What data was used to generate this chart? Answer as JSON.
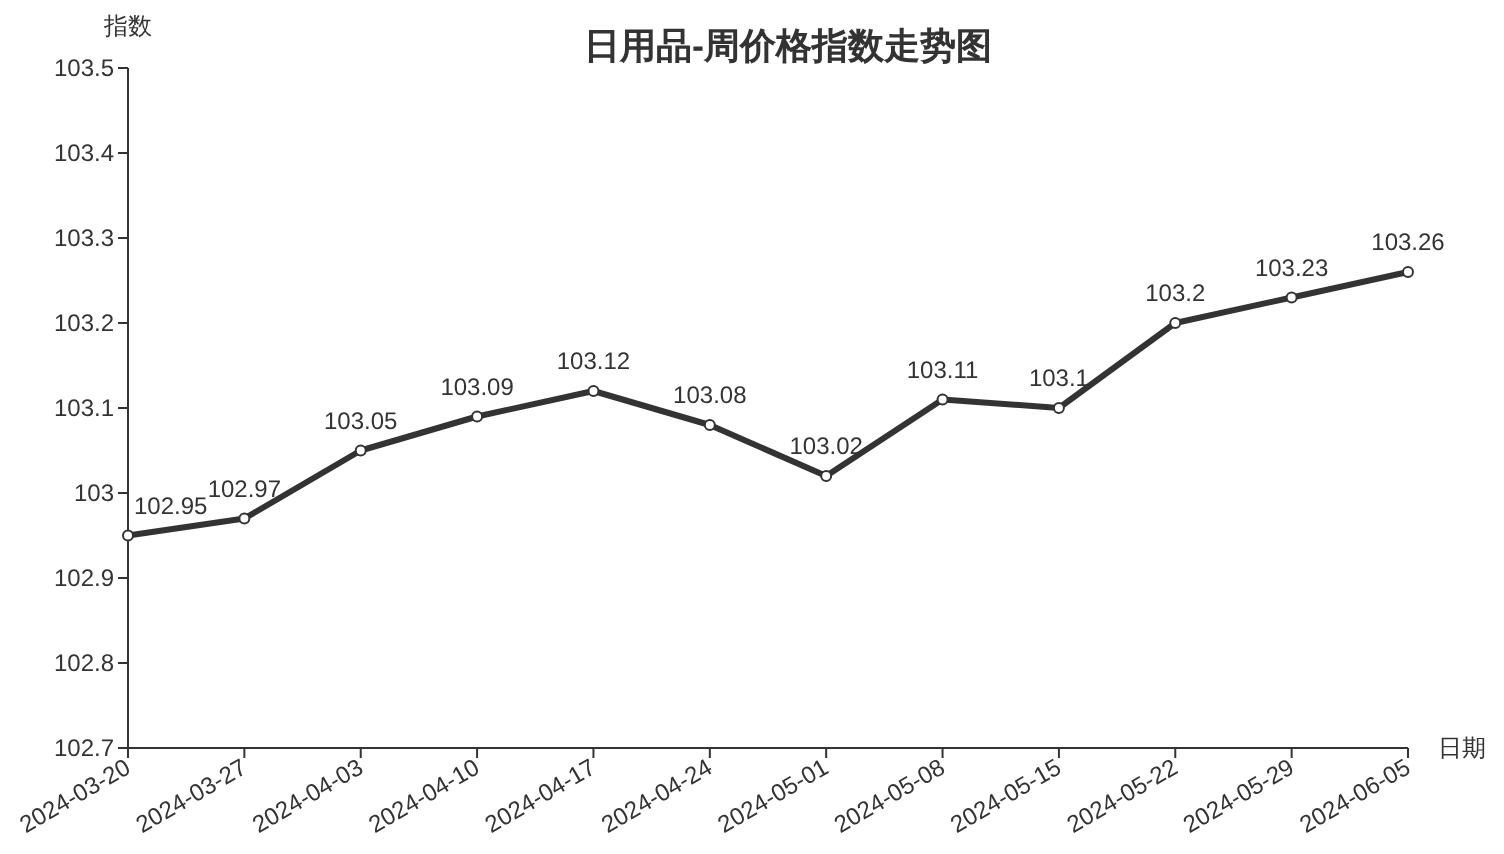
{
  "chart_data": {
    "type": "line",
    "title": "日用品-周价格指数走势图",
    "ylabel": "指数",
    "xlabel": "日期",
    "categories": [
      "2024-03-20",
      "2024-03-27",
      "2024-04-03",
      "2024-04-10",
      "2024-04-17",
      "2024-04-24",
      "2024-05-01",
      "2024-05-08",
      "2024-05-15",
      "2024-05-22",
      "2024-05-29",
      "2024-06-05"
    ],
    "series": [
      {
        "color": "#333333",
        "values": [
          102.95,
          102.97,
          103.05,
          103.09,
          103.12,
          103.08,
          103.02,
          103.11,
          103.1,
          103.2,
          103.23,
          103.26
        ]
      }
    ],
    "ylim": [
      102.7,
      103.5
    ],
    "yticks": [
      102.7,
      102.8,
      102.9,
      103,
      103.1,
      103.2,
      103.3,
      103.4,
      103.5
    ],
    "data_labels": true,
    "marker": "circle",
    "line_style": "solid"
  }
}
